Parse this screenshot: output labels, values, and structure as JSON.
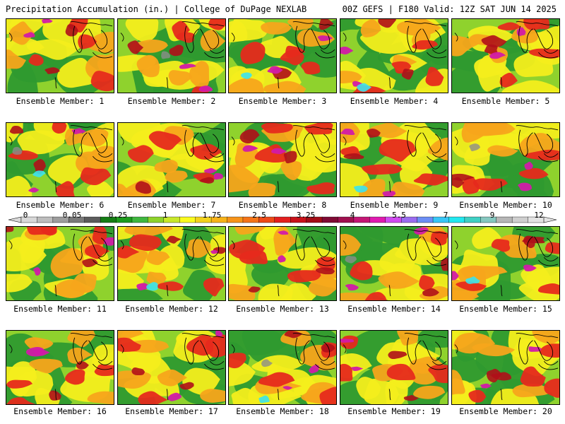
{
  "header": {
    "left": "Precipitation Accumulation (in.) | College of DuPage NEXLAB",
    "right": "00Z GEFS | F180 Valid: 12Z SAT JUN 14 2025"
  },
  "panels": [
    {
      "label": "Ensemble Member: 1"
    },
    {
      "label": "Ensemble Member: 2"
    },
    {
      "label": "Ensemble Member: 3"
    },
    {
      "label": "Ensemble Member: 4"
    },
    {
      "label": "Ensemble Member: 5"
    },
    {
      "label": "Ensemble Member: 6"
    },
    {
      "label": "Ensemble Member: 7"
    },
    {
      "label": "Ensemble Member: 8"
    },
    {
      "label": "Ensemble Member: 9"
    },
    {
      "label": "Ensemble Member: 10"
    },
    {
      "label": "Ensemble Member: 11"
    },
    {
      "label": "Ensemble Member: 12"
    },
    {
      "label": "Ensemble Member: 13"
    },
    {
      "label": "Ensemble Member: 14"
    },
    {
      "label": "Ensemble Member: 15"
    },
    {
      "label": "Ensemble Member: 16"
    },
    {
      "label": "Ensemble Member: 17"
    },
    {
      "label": "Ensemble Member: 18"
    },
    {
      "label": "Ensemble Member: 19"
    },
    {
      "label": "Ensemble Member: 20"
    }
  ],
  "colorbar": {
    "labels": [
      "0",
      "0.05",
      "0.25",
      "1",
      "1.75",
      "2.5",
      "3.25",
      "4",
      "5.5",
      "7",
      "9",
      "12"
    ],
    "colors": [
      "#d8d8d8",
      "#bdbdbd",
      "#9d9d9d",
      "#7a7a7a",
      "#5c5c5c",
      "#157d15",
      "#1d9b1d",
      "#3fb73f",
      "#8ed32b",
      "#c9e82a",
      "#fbfb1e",
      "#f3d21b",
      "#f7b319",
      "#f79419",
      "#f57418",
      "#ee4a18",
      "#e31f1f",
      "#c8121a",
      "#a30d16",
      "#7f0a34",
      "#a0104f",
      "#c41675",
      "#e01ab0",
      "#d04af0",
      "#9a6cf0",
      "#6c8ef6",
      "#38c6f6",
      "#22e8f0",
      "#3fd0c4",
      "#86c8c0",
      "#b6b6b6",
      "#cfcfcf",
      "#e3e3e3"
    ]
  },
  "map_colors": {
    "green": "#2f9a2f",
    "light_green": "#8fd22d",
    "yellow": "#f4ee1c",
    "orange": "#f7a51b",
    "red": "#e62a1c",
    "dark_red": "#b0101a",
    "magenta": "#d21aa8",
    "purple": "#b24de8",
    "cyan": "#3be2ee",
    "gray": "#8c8c8c",
    "coast": "#000000"
  }
}
